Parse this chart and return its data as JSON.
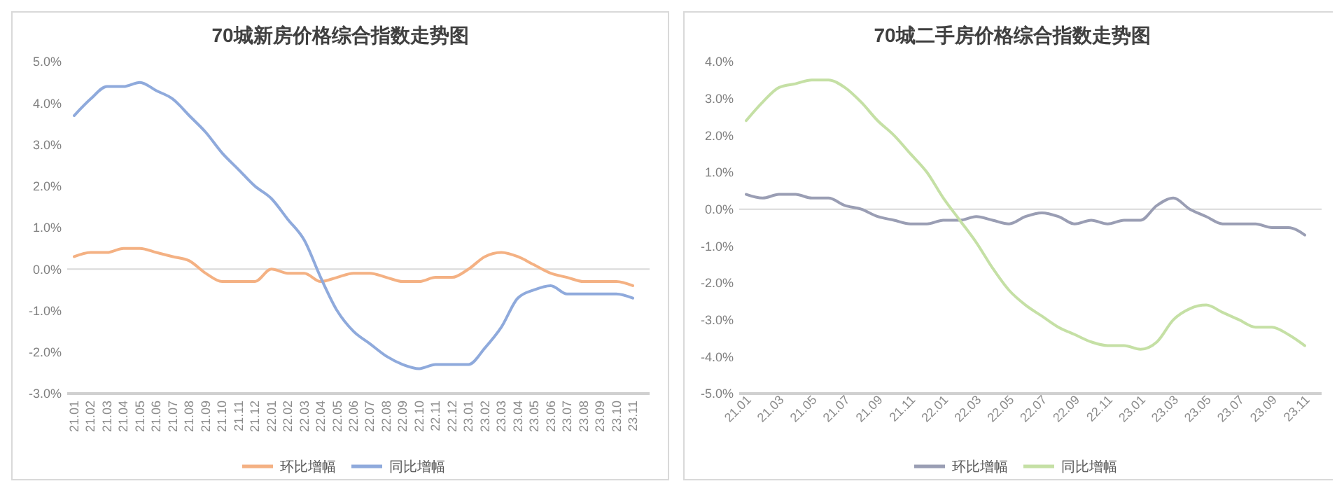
{
  "chart_data": [
    {
      "type": "line",
      "title": "70城新房价格综合指数走势图",
      "categories": [
        "21.01",
        "21.02",
        "21.03",
        "21.04",
        "21.05",
        "21.06",
        "21.07",
        "21.08",
        "21.09",
        "21.10",
        "21.11",
        "21.12",
        "22.01",
        "22.02",
        "22.03",
        "22.04",
        "22.05",
        "22.06",
        "22.07",
        "22.08",
        "22.09",
        "22.10",
        "22.11",
        "22.12",
        "23.01",
        "23.02",
        "23.03",
        "23.04",
        "23.05",
        "23.06",
        "23.07",
        "23.08",
        "23.09",
        "23.10",
        "23.11"
      ],
      "series": [
        {
          "name": "环比增幅",
          "color": "#f4b183",
          "values": [
            0.3,
            0.4,
            0.4,
            0.5,
            0.5,
            0.4,
            0.3,
            0.2,
            -0.1,
            -0.3,
            -0.3,
            -0.3,
            0.0,
            -0.1,
            -0.1,
            -0.3,
            -0.2,
            -0.1,
            -0.1,
            -0.2,
            -0.3,
            -0.3,
            -0.2,
            -0.2,
            0.0,
            0.3,
            0.4,
            0.3,
            0.1,
            -0.1,
            -0.2,
            -0.3,
            -0.3,
            -0.3,
            -0.4
          ]
        },
        {
          "name": "同比增幅",
          "color": "#8faadc",
          "values": [
            3.7,
            4.1,
            4.4,
            4.4,
            4.5,
            4.3,
            4.1,
            3.7,
            3.3,
            2.8,
            2.4,
            2.0,
            1.7,
            1.2,
            0.7,
            -0.2,
            -1.0,
            -1.5,
            -1.8,
            -2.1,
            -2.3,
            -2.4,
            -2.3,
            -2.3,
            -2.3,
            -1.9,
            -1.4,
            -0.7,
            -0.5,
            -0.4,
            -0.6,
            -0.6,
            -0.6,
            -0.6,
            -0.7
          ]
        }
      ],
      "ylim": [
        -3,
        5
      ],
      "yticks": [
        {
          "value": -3,
          "label": "-3.0%"
        },
        {
          "value": -2,
          "label": "-2.0%"
        },
        {
          "value": -1,
          "label": "-1.0%"
        },
        {
          "value": 0,
          "label": "0.0%"
        },
        {
          "value": 1,
          "label": "1.0%"
        },
        {
          "value": 2,
          "label": "2.0%"
        },
        {
          "value": 3,
          "label": "3.0%"
        },
        {
          "value": 4,
          "label": "4.0%"
        },
        {
          "value": 5,
          "label": "5.0%"
        }
      ],
      "legend": "bottom",
      "ref_lines": [
        {
          "axis": "y",
          "value": 0,
          "color": "#d9d9d9"
        }
      ]
    },
    {
      "type": "line",
      "title": "70城二手房价格综合指数走势图",
      "categories": [
        "21.01",
        null,
        "21.03",
        null,
        "21.05",
        null,
        "21.07",
        null,
        "21.09",
        null,
        "21.11",
        null,
        "22.01",
        null,
        "22.03",
        null,
        "22.05",
        null,
        "22.07",
        null,
        "22.09",
        null,
        "22.11",
        null,
        "23.01",
        null,
        "23.03",
        null,
        "23.05",
        null,
        "23.07",
        null,
        "23.09",
        null,
        "23.11"
      ],
      "series": [
        {
          "name": "环比增幅",
          "color": "#9a9eb4",
          "values": [
            0.4,
            0.3,
            0.4,
            0.4,
            0.3,
            0.3,
            0.1,
            0.0,
            -0.2,
            -0.3,
            -0.4,
            -0.4,
            -0.3,
            -0.3,
            -0.2,
            -0.3,
            -0.4,
            -0.2,
            -0.1,
            -0.2,
            -0.4,
            -0.3,
            -0.4,
            -0.3,
            -0.3,
            0.1,
            0.3,
            0.0,
            -0.2,
            -0.4,
            -0.4,
            -0.4,
            -0.5,
            -0.5,
            -0.7
          ]
        },
        {
          "name": "同比增幅",
          "color": "#c5e0a5",
          "values": [
            2.4,
            2.9,
            3.3,
            3.4,
            3.5,
            3.5,
            3.3,
            2.9,
            2.4,
            2.0,
            1.5,
            1.0,
            0.3,
            -0.3,
            -0.9,
            -1.6,
            -2.2,
            -2.6,
            -2.9,
            -3.2,
            -3.4,
            -3.6,
            -3.7,
            -3.7,
            -3.8,
            -3.6,
            -3.0,
            -2.7,
            -2.6,
            -2.8,
            -3.0,
            -3.2,
            -3.2,
            -3.4,
            -3.7
          ]
        }
      ],
      "ylim": [
        -5,
        4
      ],
      "yticks": [
        {
          "value": -5,
          "label": "-5.0%"
        },
        {
          "value": -4,
          "label": "-4.0%"
        },
        {
          "value": -3,
          "label": "-3.0%"
        },
        {
          "value": -2,
          "label": "-2.0%"
        },
        {
          "value": -1,
          "label": "-1.0%"
        },
        {
          "value": 0,
          "label": "0.0%"
        },
        {
          "value": 1,
          "label": "1.0%"
        },
        {
          "value": 2,
          "label": "2.0%"
        },
        {
          "value": 3,
          "label": "3.0%"
        },
        {
          "value": 4,
          "label": "4.0%"
        }
      ],
      "legend": "bottom",
      "ref_lines": [
        {
          "axis": "y",
          "value": 0,
          "color": "#d9d9d9"
        }
      ]
    }
  ]
}
